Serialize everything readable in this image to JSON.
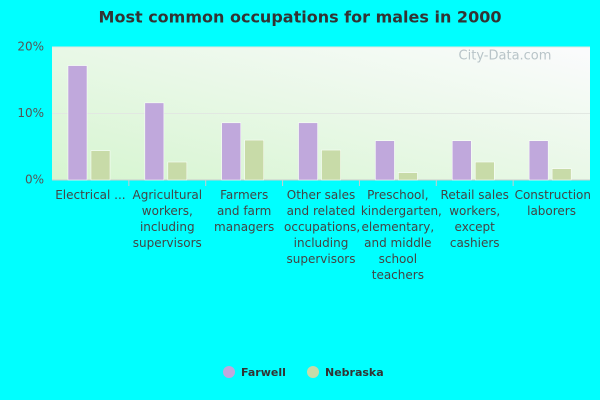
{
  "chart_data": {
    "type": "bar",
    "title": "Most common occupations for males in 2000",
    "watermark": "City-Data.com",
    "categories": [
      "Electrical ...",
      "Agricultural workers, including supervisors",
      "Farmers and farm managers",
      "Other sales and related occupations, including supervisors",
      "Preschool, kindergarten, elementary, and middle school teachers",
      "Retail sales workers, except cashiers",
      "Construction laborers"
    ],
    "series": [
      {
        "name": "Farwell",
        "color": "#c0a8dc",
        "values": [
          17.2,
          11.6,
          8.6,
          8.6,
          5.9,
          5.9,
          5.9
        ]
      },
      {
        "name": "Nebraska",
        "color": "#c8dba8",
        "values": [
          4.4,
          2.7,
          6.0,
          4.5,
          1.1,
          2.7,
          1.7
        ]
      }
    ],
    "ylim": [
      0,
      20
    ],
    "yticks": [
      {
        "value": 0,
        "label": "0%"
      },
      {
        "value": 10,
        "label": "10%"
      },
      {
        "value": 20,
        "label": "20%"
      }
    ],
    "grid": true
  }
}
